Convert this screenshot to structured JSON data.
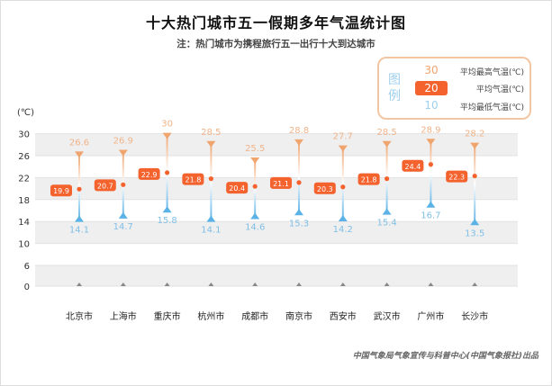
{
  "chart_data": {
    "type": "range-dot",
    "title": "十大热门城市五一假期多年气温统计图",
    "subtitle": "注：热门城市为携程旅行五一出行十大到达城市",
    "ylabel": "(℃)",
    "yticks": [
      0,
      6,
      10,
      14,
      18,
      22,
      26,
      30
    ],
    "ylim": [
      0,
      30
    ],
    "grid": "alternating bands",
    "categories": [
      "北京市",
      "上海市",
      "重庆市",
      "杭州市",
      "成都市",
      "南京市",
      "西安市",
      "武汉市",
      "广州市",
      "长沙市"
    ],
    "series": [
      {
        "name": "平均最高气温(℃)",
        "values": [
          26.6,
          26.9,
          30,
          28.5,
          25.5,
          28.8,
          27.7,
          28.5,
          28.9,
          28.2
        ],
        "color": "#f0a46e"
      },
      {
        "name": "平均气温(℃)",
        "values": [
          19.9,
          20.7,
          22.9,
          21.8,
          20.4,
          21.1,
          20.3,
          21.8,
          24.4,
          22.3
        ],
        "color": "#f4622e"
      },
      {
        "name": "平均最低气温(℃)",
        "values": [
          14.1,
          14.7,
          15.8,
          14.1,
          14.6,
          15.3,
          14.2,
          15.4,
          16.7,
          13.5
        ],
        "color": "#5bb2e6"
      }
    ],
    "legend": {
      "title": "图例",
      "placement": "top-right",
      "samples": [
        "30",
        "20",
        "10"
      ]
    },
    "source": "中国气象局气象宣传与科普中心(中国气象报社)出品"
  }
}
